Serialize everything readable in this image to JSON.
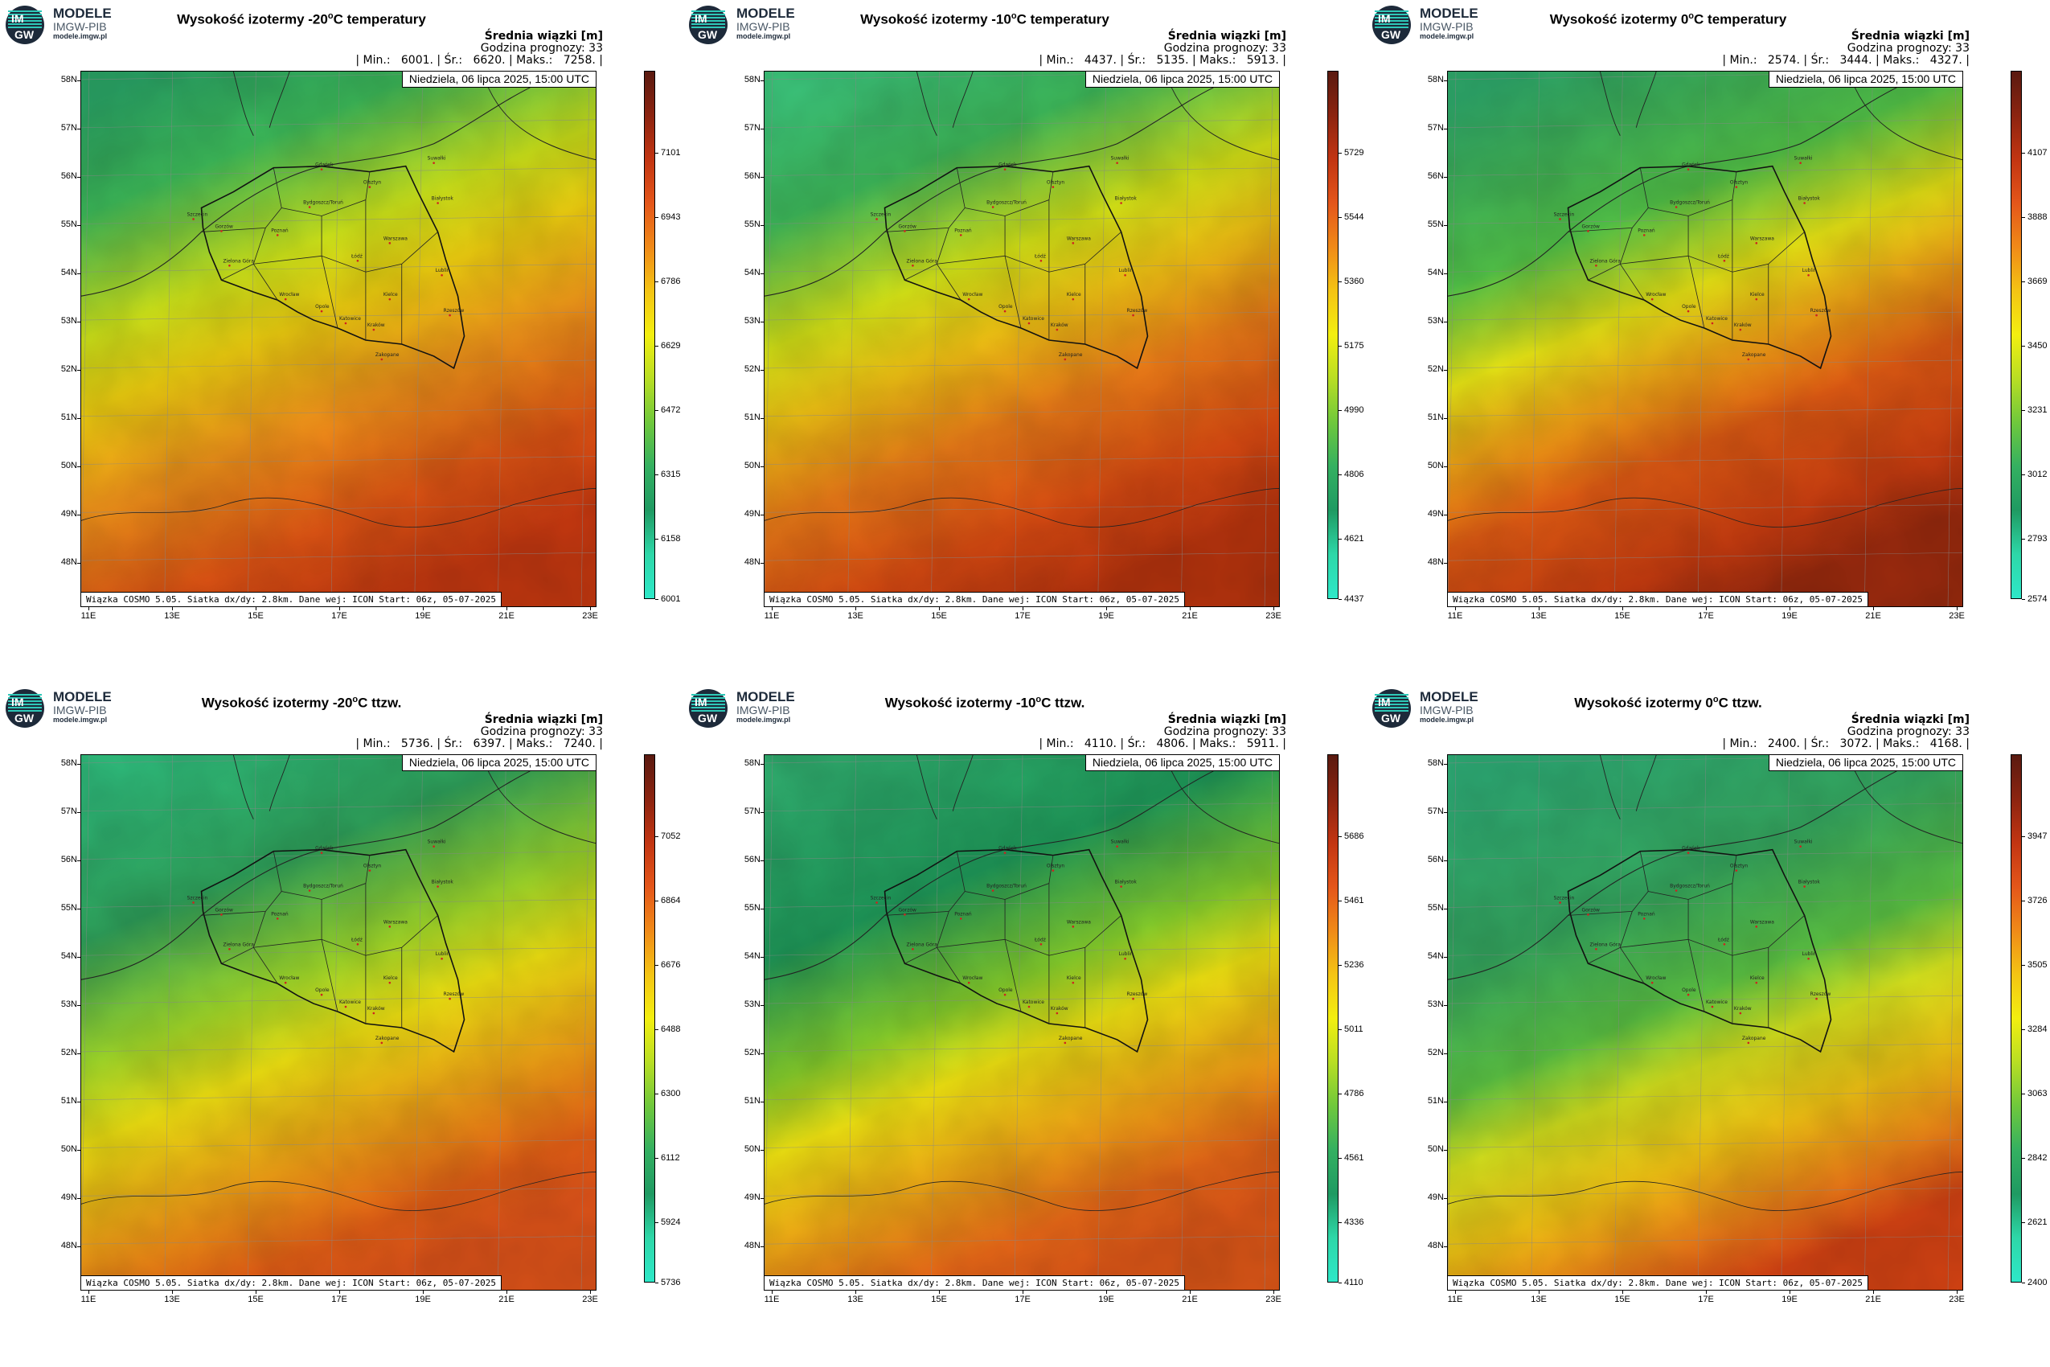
{
  "logo": {
    "main": "MODELE",
    "sub": "IMGW-PIB",
    "url": "modele.imgw.pl",
    "badge_top": "IM",
    "badge_bottom": "GW"
  },
  "common": {
    "mean_label": "Średnia wiązki [m]",
    "forecast_label": "Godzina prognozy: 33",
    "date": "Niedziela, 06 lipca 2025, 15:00 UTC",
    "footer": "Wiązka COSMO 5.05. Siatka dx/dy: 2.8km. Dane wej: ICON Start: 06z, 05-07-2025",
    "lat_labels": [
      "58N",
      "57N",
      "56N",
      "55N",
      "54N",
      "53N",
      "52N",
      "51N",
      "50N",
      "49N",
      "48N"
    ],
    "lon_labels": [
      "11E",
      "13E",
      "15E",
      "17E",
      "19E",
      "21E",
      "23E"
    ],
    "cities": [
      "Gdańsk",
      "Olsztyn",
      "Białystok",
      "Szczecin",
      "Bydgoszcz/Toruń",
      "Gorzów",
      "Poznań",
      "Warszawa",
      "Zielona Góra",
      "Łódź",
      "Lublin",
      "Wrocław",
      "Kielce",
      "Opole",
      "Rzeszów",
      "Katowice",
      "Kraków",
      "Zakopane",
      "Suwałki"
    ]
  },
  "panels": [
    {
      "title_pre": "Wysokość izotermy -20",
      "title_post": "C temperatury",
      "stats": "| Min.:   6001. | Śr.:   6620. | Maks.:   7258. |",
      "colorbar": [
        "7101",
        "6943",
        "6786",
        "6629",
        "6472",
        "6315",
        "6158",
        "6001"
      ]
    },
    {
      "title_pre": "Wysokość izotermy -10",
      "title_post": "C temperatury",
      "stats": "| Min.:   4437. | Śr.:   5135. | Maks.:   5913. |",
      "colorbar": [
        "5729",
        "5544",
        "5360",
        "5175",
        "4990",
        "4806",
        "4621",
        "4437"
      ]
    },
    {
      "title_pre": "Wysokość izotermy 0",
      "title_post": "C temperatury",
      "stats": "| Min.:   2574. | Śr.:   3444. | Maks.:   4327. |",
      "colorbar": [
        "4107",
        "3888",
        "3669",
        "3450",
        "3231",
        "3012",
        "2793",
        "2574"
      ]
    },
    {
      "title_pre": "Wysokość izotermy -20",
      "title_post": "C ttzw.",
      "stats": "| Min.:   5736. | Śr.:   6397. | Maks.:   7240. |",
      "colorbar": [
        "7052",
        "6864",
        "6676",
        "6488",
        "6300",
        "6112",
        "5924",
        "5736"
      ]
    },
    {
      "title_pre": "Wysokość izotermy -10",
      "title_post": "C ttzw.",
      "stats": "| Min.:   4110. | Śr.:   4806. | Maks.:   5911. |",
      "colorbar": [
        "5686",
        "5461",
        "5236",
        "5011",
        "4786",
        "4561",
        "4336",
        "4110"
      ]
    },
    {
      "title_pre": "Wysokość izotermy 0",
      "title_post": "C ttzw.",
      "stats": "| Min.:   2400. | Śr.:   3072. | Maks.:   4168. |",
      "colorbar": [
        "3947",
        "3726",
        "3505",
        "3284",
        "3063",
        "2842",
        "2621",
        "2400"
      ]
    }
  ],
  "title_sup": "o",
  "colors": {
    "low": "#2ee8c0",
    "green": "#1fa35c",
    "yellow": "#f3ef0f",
    "orange": "#f08a14",
    "red": "#d03a10",
    "dark": "#5a1a10"
  }
}
